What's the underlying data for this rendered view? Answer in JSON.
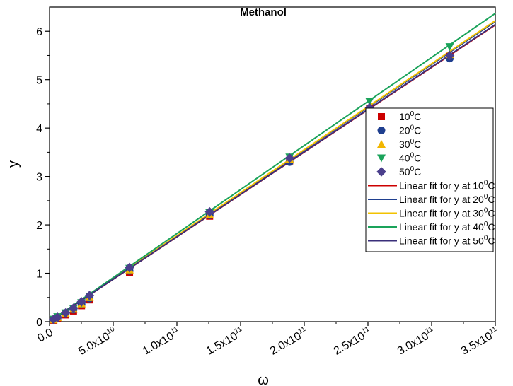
{
  "chart_data": {
    "type": "scatter",
    "title": "Methanol",
    "xlabel": "ω",
    "ylabel": "y",
    "xlim": [
      0,
      350000000000.0
    ],
    "ylim": [
      0,
      6.5
    ],
    "x_ticks": [
      {
        "value": 0,
        "label": "0.0"
      },
      {
        "value": 50000000000.0,
        "mant": "5.0x10",
        "exp": "10"
      },
      {
        "value": 100000000000.0,
        "mant": "1.0x10",
        "exp": "11"
      },
      {
        "value": 150000000000.0,
        "mant": "1.5x10",
        "exp": "11"
      },
      {
        "value": 200000000000.0,
        "mant": "2.0x10",
        "exp": "11"
      },
      {
        "value": 250000000000.0,
        "mant": "2.5x10",
        "exp": "11"
      },
      {
        "value": 300000000000.0,
        "mant": "3.0x10",
        "exp": "11"
      },
      {
        "value": 350000000000.0,
        "mant": "3.5x10",
        "exp": "11"
      }
    ],
    "y_ticks": [
      "0",
      "1",
      "2",
      "3",
      "4",
      "5",
      "6"
    ],
    "grid": false,
    "legend_position": "right",
    "series": [
      {
        "label_main": "10",
        "label_sup": "0",
        "label_tail": "C",
        "marker": "square",
        "color": "#cc0000",
        "x": [
          3140000000.0,
          6280000000.0,
          12600000000.0,
          18800000000.0,
          25100000000.0,
          31400000000.0,
          62800000000.0,
          125700000000.0,
          188500000000.0,
          251300000000.0,
          314200000000.0
        ],
        "y": [
          0.03,
          0.07,
          0.14,
          0.22,
          0.33,
          0.45,
          1.02,
          2.18,
          3.32,
          4.4,
          5.48
        ]
      },
      {
        "label_main": "20",
        "label_sup": "0",
        "label_tail": "C",
        "marker": "circle",
        "color": "#1f3f8f",
        "x": [
          3140000000.0,
          6280000000.0,
          12600000000.0,
          18800000000.0,
          25100000000.0,
          31400000000.0,
          62800000000.0,
          125700000000.0,
          188500000000.0,
          251300000000.0,
          314200000000.0
        ],
        "y": [
          0.04,
          0.08,
          0.16,
          0.25,
          0.36,
          0.48,
          1.05,
          2.2,
          3.3,
          4.38,
          5.44
        ]
      },
      {
        "label_main": "30",
        "label_sup": "0",
        "label_tail": "C",
        "marker": "triangle-up",
        "color": "#f2b600",
        "x": [
          3140000000.0,
          6280000000.0,
          12600000000.0,
          18800000000.0,
          25100000000.0,
          31400000000.0,
          62800000000.0,
          125700000000.0,
          188500000000.0,
          251300000000.0,
          314200000000.0
        ],
        "y": [
          0.04,
          0.09,
          0.17,
          0.26,
          0.37,
          0.5,
          1.07,
          2.21,
          3.36,
          4.45,
          5.52
        ]
      },
      {
        "label_main": "40",
        "label_sup": "0",
        "label_tail": "C",
        "marker": "triangle-down",
        "color": "#1aa35a",
        "x": [
          3140000000.0,
          6280000000.0,
          12600000000.0,
          18800000000.0,
          25100000000.0,
          31400000000.0,
          62800000000.0,
          125700000000.0,
          188500000000.0,
          251300000000.0,
          314200000000.0
        ],
        "y": [
          0.05,
          0.1,
          0.18,
          0.27,
          0.39,
          0.52,
          1.1,
          2.25,
          3.4,
          4.55,
          5.68
        ]
      },
      {
        "label_main": "50",
        "label_sup": "0",
        "label_tail": "C",
        "marker": "diamond",
        "color": "#4b3f8c",
        "x": [
          3140000000.0,
          6280000000.0,
          12600000000.0,
          18800000000.0,
          25100000000.0,
          31400000000.0,
          62800000000.0,
          125700000000.0,
          188500000000.0,
          251300000000.0,
          314200000000.0
        ],
        "y": [
          0.05,
          0.09,
          0.18,
          0.28,
          0.41,
          0.54,
          1.12,
          2.27,
          3.38,
          4.42,
          5.5
        ]
      }
    ],
    "fits": [
      {
        "label_main": "Linear fit for y at 10",
        "label_sup": "0",
        "label_tail": "C",
        "color": "#cc0000",
        "x": [
          0,
          350000000000.0
        ],
        "y": [
          0.0,
          6.13
        ]
      },
      {
        "label_main": "Linear fit for y at 20",
        "label_sup": "0",
        "label_tail": "C",
        "color": "#1f3f8f",
        "x": [
          0,
          350000000000.0
        ],
        "y": [
          0.0,
          6.2
        ]
      },
      {
        "label_main": "Linear fit for y at 30",
        "label_sup": "0",
        "label_tail": "C",
        "color": "#f2c200",
        "x": [
          0,
          350000000000.0
        ],
        "y": [
          0.0,
          6.22
        ]
      },
      {
        "label_main": "Linear fit for y at 40",
        "label_sup": "0",
        "label_tail": "C",
        "color": "#1aa35a",
        "x": [
          0,
          350000000000.0
        ],
        "y": [
          0.0,
          6.37
        ]
      },
      {
        "label_main": "Linear fit for y at 50",
        "label_sup": "0",
        "label_tail": "C",
        "color": "#3a2f7a",
        "x": [
          0,
          350000000000.0
        ],
        "y": [
          0.0,
          6.14
        ]
      }
    ]
  }
}
